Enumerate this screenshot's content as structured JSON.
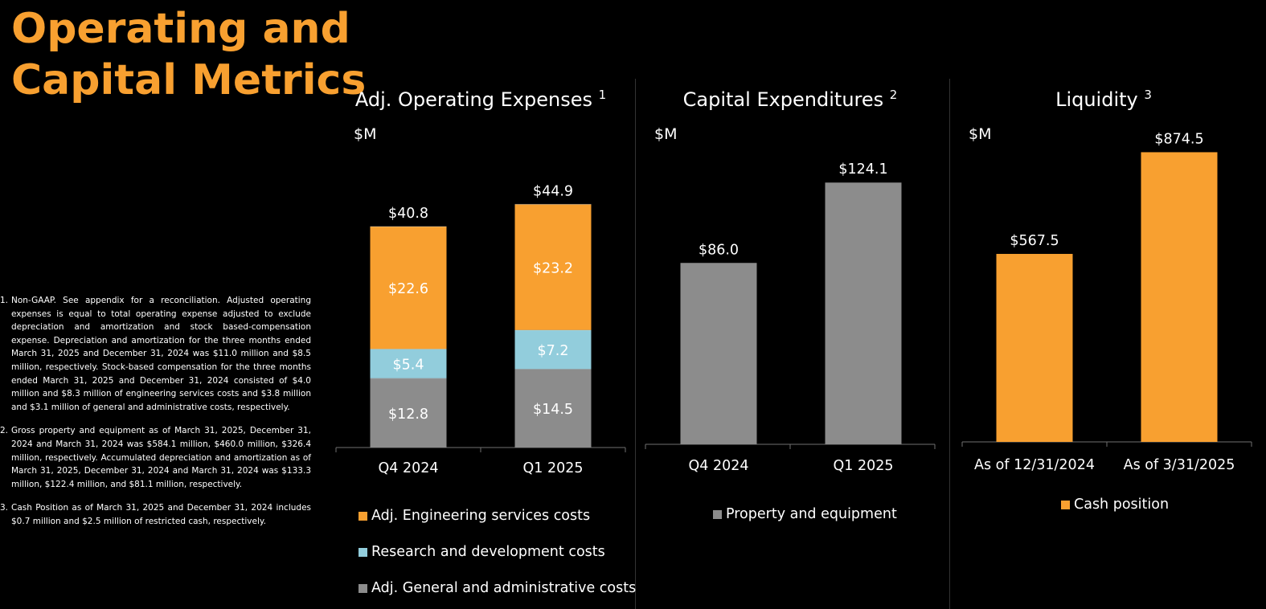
{
  "page": {
    "title_line1": "Operating and",
    "title_line2": "Capital Metrics"
  },
  "footnotes": [
    {
      "marker": "1.",
      "text": "Non-GAAP. See appendix for a reconciliation. Adjusted operating expenses is equal to total operating expense adjusted to exclude depreciation and amortization and stock based-compensation expense. Depreciation and amortization for the three months ended March 31, 2025 and December 31, 2024 was $11.0 million and $8.5 million, respectively. Stock-based compensation for the three months ended March 31, 2025 and December 31, 2024 consisted of $4.0 million and $8.3 million of engineering services costs and $3.8 million and $3.1 million of general and administrative costs, respectively."
    },
    {
      "marker": "2.",
      "text": "Gross property and equipment as of March 31, 2025, December 31, 2024 and March 31, 2024 was $584.1 million, $460.0 million, $326.4 million, respectively. Accumulated depreciation and amortization as of March 31, 2025, December 31, 2024 and March 31, 2024 was $133.3 million, $122.4 million, and $81.1 million, respectively."
    },
    {
      "marker": "3.",
      "text": "Cash Position as of March 31, 2025 and December 31, 2024 includes $0.7 million and $2.5 million of restricted cash, respectively."
    }
  ],
  "colors": {
    "orange": "#f8a030",
    "light_blue": "#92cddc",
    "gray": "#8c8c8c",
    "title": "#f8a030",
    "background": "#000000"
  },
  "chart_data": [
    {
      "type": "bar",
      "stacked": true,
      "title": "Adj. Operating Expenses",
      "title_sup": "1",
      "unit_label": "$M",
      "categories": [
        "Q4 2024",
        "Q1 2025"
      ],
      "series": [
        {
          "name": "Adj. General and administrative costs",
          "values": [
            12.8,
            14.5
          ],
          "labels": [
            "$12.8",
            "$14.5"
          ],
          "color": "#8c8c8c"
        },
        {
          "name": "Research and development costs",
          "values": [
            5.4,
            7.2
          ],
          "labels": [
            "$5.4",
            "$7.2"
          ],
          "color": "#92cddc"
        },
        {
          "name": "Adj. Engineering services costs",
          "values": [
            22.6,
            23.2
          ],
          "labels": [
            "$22.6",
            "$23.2"
          ],
          "color": "#f8a030"
        }
      ],
      "totals": [
        40.8,
        44.9
      ],
      "total_labels": [
        "$40.8",
        "$44.9"
      ],
      "legend": [
        {
          "name": "Adj. Engineering services costs",
          "color": "#f8a030"
        },
        {
          "name": "Research and development costs",
          "color": "#92cddc"
        },
        {
          "name": "Adj. General and administrative costs",
          "color": "#8c8c8c"
        }
      ],
      "legend_position": "bottom"
    },
    {
      "type": "bar",
      "title": "Capital Expenditures",
      "title_sup": "2",
      "unit_label": "$M",
      "categories": [
        "Q4 2024",
        "Q1 2025"
      ],
      "series": [
        {
          "name": "Property and equipment",
          "values": [
            86.0,
            124.1
          ],
          "labels": [
            "$86.0",
            "$124.1"
          ],
          "color": "#8c8c8c"
        }
      ],
      "legend": [
        {
          "name": "Property and equipment",
          "color": "#8c8c8c"
        }
      ],
      "legend_position": "bottom"
    },
    {
      "type": "bar",
      "title": "Liquidity",
      "title_sup": "3",
      "unit_label": "$M",
      "categories": [
        "As of 12/31/2024",
        "As of 3/31/2025"
      ],
      "series": [
        {
          "name": "Cash position",
          "values": [
            567.5,
            874.5
          ],
          "labels": [
            "$567.5",
            "$874.5"
          ],
          "color": "#f8a030"
        }
      ],
      "legend": [
        {
          "name": "Cash position",
          "color": "#f8a030"
        }
      ],
      "legend_position": "bottom"
    }
  ]
}
